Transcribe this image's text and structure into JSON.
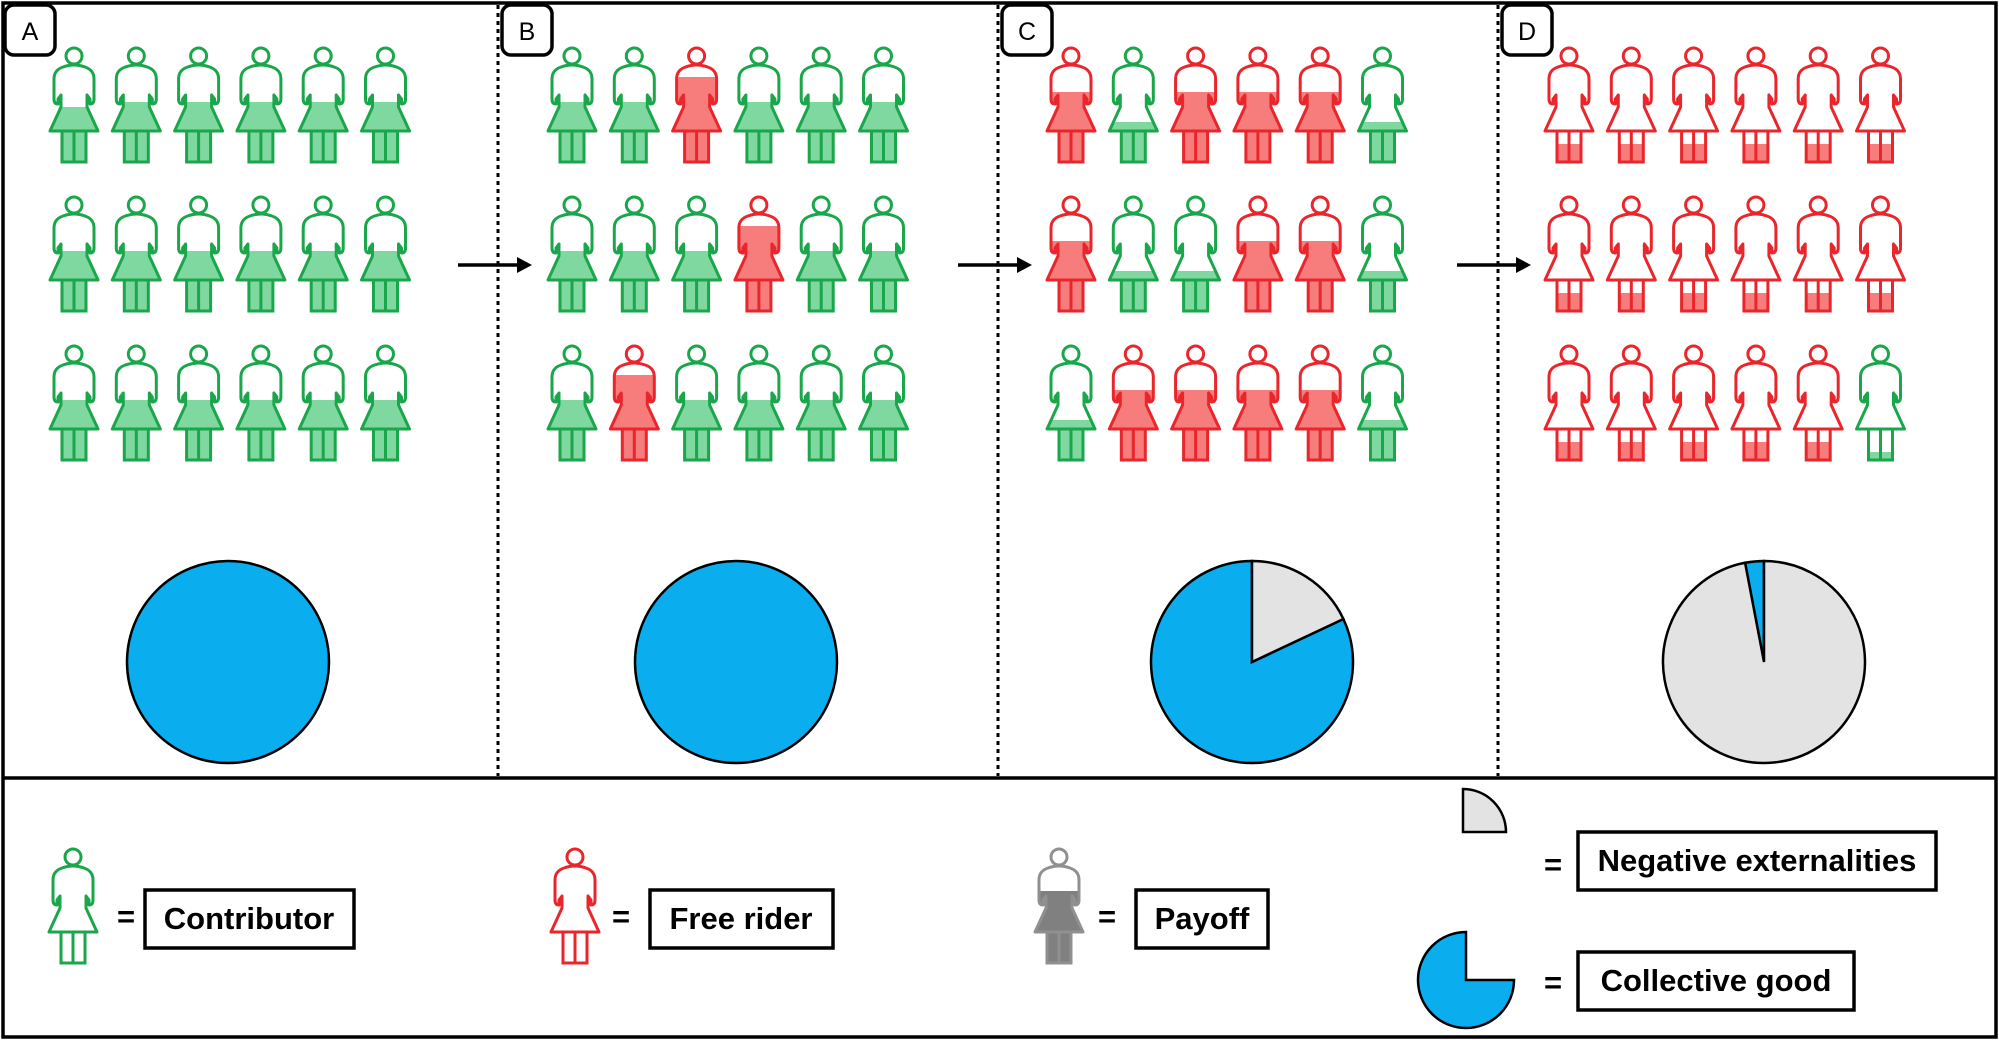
{
  "colors": {
    "contributor_stroke": "#1aa64a",
    "contributor_fill": "#7fd8a0",
    "free_rider_stroke": "#e8262c",
    "free_rider_fill": "#f77c7c",
    "payoff_stroke": "#909090",
    "payoff_fill": "#808080",
    "collective_good": "#0aaeef",
    "negative_externalities": "#e3e3e3"
  },
  "panels": [
    {
      "label": "A",
      "people": [
        [
          "C",
          "C",
          "C",
          "C",
          "C",
          "C"
        ],
        [
          "C",
          "C",
          "C",
          "C",
          "C",
          "C"
        ],
        [
          "C",
          "C",
          "C",
          "C",
          "C",
          "C"
        ]
      ],
      "payoff_level": [
        [
          0.55,
          0.6,
          0.6,
          0.6,
          0.6,
          0.6
        ],
        [
          0.6,
          0.6,
          0.6,
          0.6,
          0.6,
          0.6
        ],
        [
          0.6,
          0.6,
          0.6,
          0.6,
          0.6,
          0.6
        ]
      ],
      "collective_good_share": 1.0
    },
    {
      "label": "B",
      "people": [
        [
          "C",
          "C",
          "F",
          "C",
          "C",
          "C"
        ],
        [
          "C",
          "C",
          "C",
          "F",
          "C",
          "C"
        ],
        [
          "C",
          "F",
          "C",
          "C",
          "C",
          "C"
        ]
      ],
      "payoff_level": [
        [
          0.6,
          0.6,
          0.85,
          0.6,
          0.6,
          0.6
        ],
        [
          0.6,
          0.6,
          0.6,
          0.85,
          0.6,
          0.6
        ],
        [
          0.6,
          0.85,
          0.6,
          0.6,
          0.6,
          0.6
        ]
      ],
      "collective_good_share": 1.0
    },
    {
      "label": "C",
      "people": [
        [
          "F",
          "C",
          "F",
          "F",
          "F",
          "C"
        ],
        [
          "F",
          "C",
          "C",
          "F",
          "F",
          "C"
        ],
        [
          "C",
          "F",
          "F",
          "F",
          "F",
          "C"
        ]
      ],
      "payoff_level": [
        [
          0.7,
          0.4,
          0.7,
          0.7,
          0.7,
          0.4
        ],
        [
          0.7,
          0.4,
          0.4,
          0.7,
          0.7,
          0.4
        ],
        [
          0.4,
          0.7,
          0.7,
          0.7,
          0.7,
          0.4
        ]
      ],
      "collective_good_share": 0.82
    },
    {
      "label": "D",
      "people": [
        [
          "F",
          "F",
          "F",
          "F",
          "F",
          "F"
        ],
        [
          "F",
          "F",
          "F",
          "F",
          "F",
          "F"
        ],
        [
          "F",
          "F",
          "F",
          "F",
          "F",
          "C"
        ]
      ],
      "payoff_level": [
        [
          0.18,
          0.18,
          0.18,
          0.18,
          0.18,
          0.18
        ],
        [
          0.18,
          0.18,
          0.18,
          0.18,
          0.18,
          0.18
        ],
        [
          0.18,
          0.18,
          0.18,
          0.18,
          0.18,
          0.08
        ]
      ],
      "collective_good_share": 0.03
    }
  ],
  "legend": {
    "contributor": "Contributor",
    "free_rider": "Free rider",
    "payoff": "Payoff",
    "negative_externalities": "Negative externalities",
    "collective_good": "Collective good",
    "equals": "="
  }
}
